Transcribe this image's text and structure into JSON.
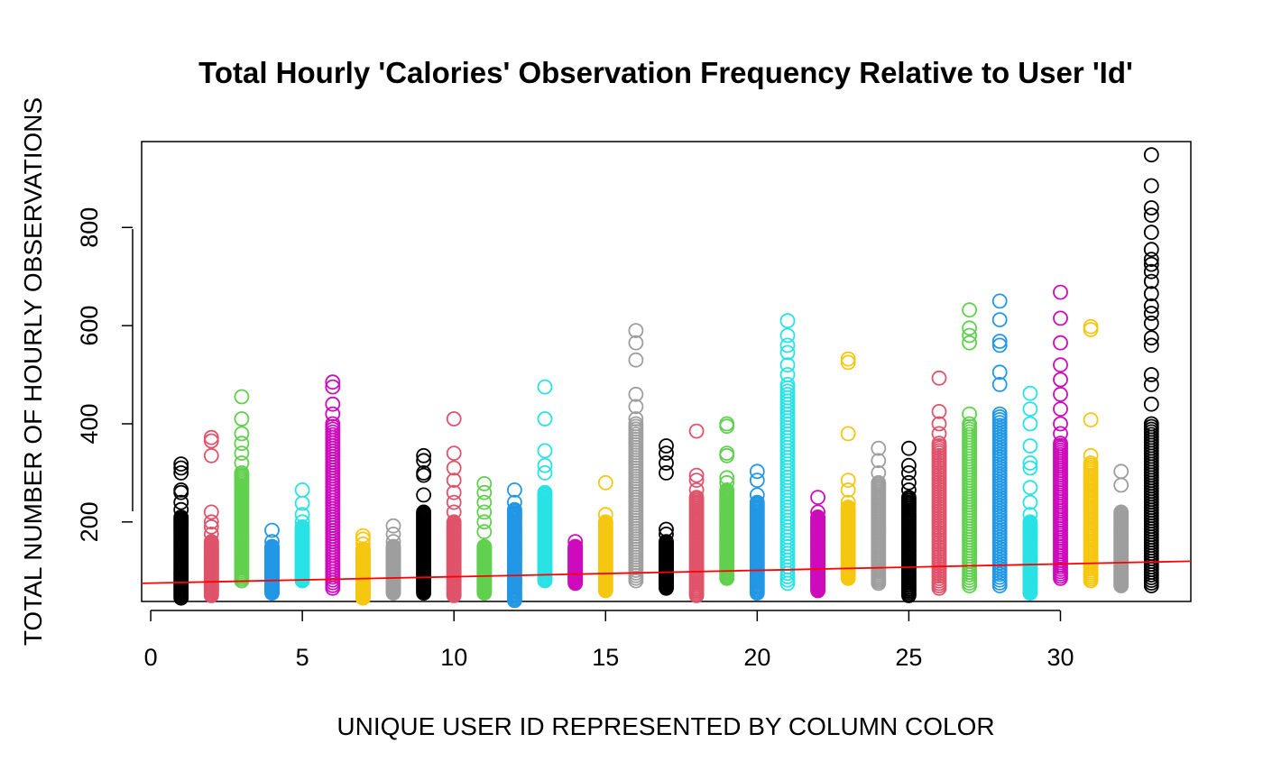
{
  "chart_data": {
    "type": "scatter",
    "title": "Total Hourly 'Calories' Observation Frequency Relative to User 'Id'",
    "xlabel": "UNIQUE USER ID REPRESENTED BY COLUMN COLOR",
    "ylabel": "TOTAL NUMBER OF HOURLY OBSERVATIONS",
    "xlim": [
      -0.3,
      34.3
    ],
    "ylim": [
      38,
      975
    ],
    "x_ticks": [
      0,
      5,
      10,
      15,
      20,
      25,
      30
    ],
    "y_ticks": [
      200,
      400,
      600,
      800
    ],
    "grid": false,
    "legend": "none",
    "palette": [
      "#000000",
      "#DF536B",
      "#61D04F",
      "#2297E6",
      "#28E2E5",
      "#CD0BBC",
      "#F5C710",
      "#9E9E9E"
    ],
    "trend_line": {
      "color": "#FF0000",
      "x": [
        -0.3,
        34.3
      ],
      "y": [
        75,
        120
      ]
    },
    "columns": [
      {
        "id": 1,
        "min": 45,
        "max": 210,
        "outliers": [
          225,
          240,
          260,
          265,
          300,
          310,
          318
        ]
      },
      {
        "id": 2,
        "min": 50,
        "max": 160,
        "outliers": [
          175,
          190,
          200,
          220,
          335,
          365,
          372
        ]
      },
      {
        "id": 3,
        "min": 80,
        "max": 300,
        "outliers": [
          320,
          340,
          360,
          380,
          410,
          455
        ]
      },
      {
        "id": 4,
        "min": 55,
        "max": 150,
        "outliers": [
          160,
          183
        ]
      },
      {
        "id": 5,
        "min": 80,
        "max": 190,
        "outliers": [
          200,
          215,
          238,
          265
        ]
      },
      {
        "id": 6,
        "min": 65,
        "max": 400,
        "outliers": [
          420,
          440,
          475,
          485
        ]
      },
      {
        "id": 7,
        "min": 45,
        "max": 145,
        "outliers": [
          155,
          165,
          172
        ]
      },
      {
        "id": 8,
        "min": 55,
        "max": 150,
        "outliers": [
          160,
          175,
          192
        ]
      },
      {
        "id": 9,
        "min": 55,
        "max": 220,
        "outliers": [
          255,
          295,
          300,
          325,
          335
        ]
      },
      {
        "id": 10,
        "min": 50,
        "max": 200,
        "outliers": [
          220,
          240,
          260,
          285,
          310,
          340,
          410
        ]
      },
      {
        "id": 11,
        "min": 55,
        "max": 150,
        "outliers": [
          180,
          200,
          220,
          240,
          260,
          278
        ]
      },
      {
        "id": 12,
        "min": 40,
        "max": 225,
        "outliers": [
          240,
          265
        ]
      },
      {
        "id": 13,
        "min": 80,
        "max": 260,
        "outliers": [
          300,
          315,
          345,
          410,
          475
        ]
      },
      {
        "id": 14,
        "min": 75,
        "max": 150,
        "outliers": [
          160
        ]
      },
      {
        "id": 15,
        "min": 60,
        "max": 200,
        "outliers": [
          215,
          280
        ]
      },
      {
        "id": 16,
        "min": 80,
        "max": 400,
        "outliers": [
          410,
          435,
          460,
          530,
          565,
          590
        ]
      },
      {
        "id": 17,
        "min": 65,
        "max": 160,
        "outliers": [
          175,
          185,
          300,
          320,
          340,
          355
        ]
      },
      {
        "id": 18,
        "min": 50,
        "max": 250,
        "outliers": [
          265,
          285,
          295,
          385
        ]
      },
      {
        "id": 19,
        "min": 85,
        "max": 265,
        "outliers": [
          280,
          290,
          335,
          340,
          395,
          400
        ]
      },
      {
        "id": 20,
        "min": 55,
        "max": 240,
        "outliers": [
          255,
          285,
          303
        ]
      },
      {
        "id": 21,
        "min": 75,
        "max": 480,
        "outliers": [
          500,
          520,
          545,
          560,
          580,
          610
        ]
      },
      {
        "id": 22,
        "min": 60,
        "max": 210,
        "outliers": [
          220,
          250
        ]
      },
      {
        "id": 23,
        "min": 85,
        "max": 230,
        "outliers": [
          240,
          265,
          285,
          380,
          525,
          532
        ]
      },
      {
        "id": 24,
        "min": 75,
        "max": 280,
        "outliers": [
          300,
          325,
          350
        ]
      },
      {
        "id": 25,
        "min": 50,
        "max": 250,
        "outliers": [
          265,
          280,
          300,
          315,
          350
        ]
      },
      {
        "id": 26,
        "min": 65,
        "max": 360,
        "outliers": [
          380,
          400,
          425,
          493
        ]
      },
      {
        "id": 27,
        "min": 70,
        "max": 400,
        "outliers": [
          420,
          565,
          580,
          595,
          632
        ]
      },
      {
        "id": 28,
        "min": 70,
        "max": 420,
        "outliers": [
          480,
          505,
          560,
          568,
          612,
          650
        ]
      },
      {
        "id": 29,
        "min": 55,
        "max": 200,
        "outliers": [
          215,
          240,
          270,
          310,
          320,
          355,
          400,
          430,
          462
        ]
      },
      {
        "id": 30,
        "min": 85,
        "max": 360,
        "outliers": [
          380,
          400,
          430,
          460,
          490,
          520,
          565,
          615,
          668
        ]
      },
      {
        "id": 31,
        "min": 80,
        "max": 320,
        "outliers": [
          335,
          408,
          592,
          598
        ]
      },
      {
        "id": 32,
        "min": 70,
        "max": 220,
        "outliers": [
          275,
          303
        ]
      },
      {
        "id": 33,
        "min": 70,
        "max": 400,
        "outliers": [
          440,
          480,
          500,
          560,
          575,
          605,
          625,
          640,
          665,
          690,
          710,
          725,
          735,
          755,
          790,
          825,
          840,
          885,
          948
        ]
      }
    ]
  }
}
